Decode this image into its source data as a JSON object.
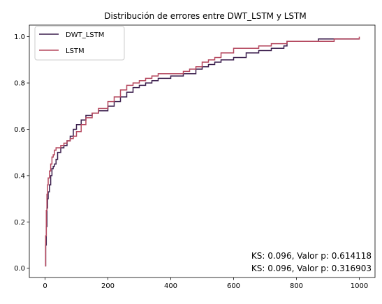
{
  "chart_data": {
    "type": "line",
    "title": "Distribución de errores entre DWT_LSTM y LSTM",
    "xlabel": "",
    "ylabel": "",
    "xlim": [
      -50,
      1050
    ],
    "ylim": [
      -0.04,
      1.05
    ],
    "xticks": [
      0,
      200,
      400,
      600,
      800,
      1000
    ],
    "xtick_labels": [
      "0",
      "200",
      "400",
      "600",
      "800",
      "1000"
    ],
    "yticks": [
      0.0,
      0.2,
      0.4,
      0.6,
      0.8,
      1.0
    ],
    "ytick_labels": [
      "0.0",
      "0.2",
      "0.4",
      "0.6",
      "0.8",
      "1.0"
    ],
    "grid": false,
    "legend_position": "top-left",
    "step": true,
    "series": [
      {
        "name": "DWT_LSTM",
        "color": "#3b1f4d",
        "x": [
          0,
          2,
          4,
          6,
          8,
          10,
          14,
          18,
          22,
          26,
          30,
          35,
          40,
          50,
          60,
          70,
          80,
          90,
          100,
          115,
          130,
          150,
          170,
          200,
          220,
          240,
          260,
          280,
          300,
          320,
          340,
          360,
          380,
          400,
          420,
          440,
          460,
          480,
          500,
          520,
          540,
          560,
          580,
          600,
          640,
          680,
          720,
          740,
          760,
          770,
          800,
          860,
          870,
          900,
          1000
        ],
        "y": [
          0.01,
          0.1,
          0.18,
          0.26,
          0.3,
          0.33,
          0.36,
          0.4,
          0.43,
          0.44,
          0.45,
          0.47,
          0.5,
          0.52,
          0.53,
          0.55,
          0.57,
          0.6,
          0.62,
          0.64,
          0.66,
          0.67,
          0.68,
          0.7,
          0.72,
          0.74,
          0.76,
          0.78,
          0.79,
          0.8,
          0.81,
          0.82,
          0.82,
          0.83,
          0.83,
          0.84,
          0.84,
          0.86,
          0.87,
          0.88,
          0.89,
          0.9,
          0.9,
          0.91,
          0.93,
          0.94,
          0.95,
          0.95,
          0.96,
          0.98,
          0.98,
          0.98,
          0.99,
          0.99,
          0.99
        ]
      },
      {
        "name": "LSTM",
        "color": "#b5485f",
        "x": [
          0,
          2,
          4,
          6,
          8,
          10,
          14,
          18,
          22,
          26,
          30,
          35,
          40,
          50,
          60,
          70,
          80,
          90,
          100,
          115,
          130,
          150,
          170,
          200,
          220,
          240,
          260,
          280,
          300,
          320,
          340,
          360,
          380,
          400,
          420,
          440,
          460,
          480,
          500,
          520,
          540,
          560,
          600,
          640,
          680,
          720,
          760,
          770,
          800,
          900,
          920,
          1000
        ],
        "y": [
          0.01,
          0.14,
          0.25,
          0.32,
          0.36,
          0.39,
          0.42,
          0.45,
          0.48,
          0.49,
          0.51,
          0.52,
          0.52,
          0.53,
          0.54,
          0.55,
          0.56,
          0.57,
          0.59,
          0.62,
          0.65,
          0.67,
          0.69,
          0.72,
          0.74,
          0.77,
          0.79,
          0.8,
          0.81,
          0.82,
          0.83,
          0.84,
          0.84,
          0.84,
          0.84,
          0.85,
          0.86,
          0.87,
          0.89,
          0.9,
          0.91,
          0.93,
          0.95,
          0.95,
          0.96,
          0.97,
          0.97,
          0.98,
          0.98,
          0.98,
          0.99,
          1.0
        ]
      }
    ],
    "annotations": [
      "KS: 0.096, Valor p: 0.614118",
      "KS: 0.096, Valor p: 0.316903"
    ]
  }
}
